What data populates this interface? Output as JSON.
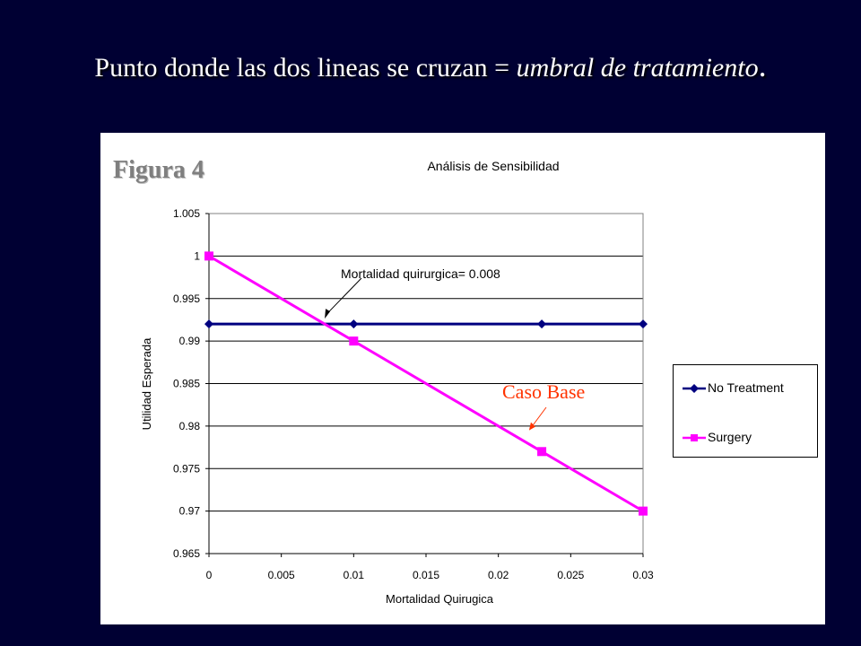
{
  "slide": {
    "title_plain": "Punto donde las dos lineas se cruzan = ",
    "title_italic": "umbral de tratamiento",
    "title_end": "."
  },
  "figure_label": "Figura 4",
  "chart_data": {
    "type": "line",
    "title": "Análisis de Sensibilidad",
    "xlabel": "Mortalidad Quirugica",
    "ylabel": "Utilidad Esperada",
    "xlim": [
      0,
      0.03
    ],
    "ylim": [
      0.965,
      1.005
    ],
    "xticks": [
      "0",
      "0.005",
      "0.01",
      "0.015",
      "0.02",
      "0.025",
      "0.03"
    ],
    "yticks": [
      "0.965",
      "0.97",
      "0.975",
      "0.98",
      "0.985",
      "0.99",
      "0.995",
      "1",
      "1.005"
    ],
    "grid": "horizontal",
    "legend_position": "right",
    "series": [
      {
        "name": "No Treatment",
        "color": "#000080",
        "marker": "diamond",
        "x": [
          0,
          0.01,
          0.023,
          0.03
        ],
        "y": [
          0.992,
          0.992,
          0.992,
          0.992
        ]
      },
      {
        "name": "Surgery",
        "color": "#ff00ff",
        "marker": "square",
        "x": [
          0,
          0.01,
          0.023,
          0.03
        ],
        "y": [
          1.0,
          0.99,
          0.977,
          0.97
        ]
      }
    ],
    "annotations": [
      {
        "text": "Mortalidad quirurgica= 0.008",
        "x": 0.008,
        "y": 0.992,
        "color": "#000000"
      },
      {
        "text": "Caso Base",
        "x": 0.022,
        "y": 0.9795,
        "color": "#ff3300"
      }
    ]
  }
}
